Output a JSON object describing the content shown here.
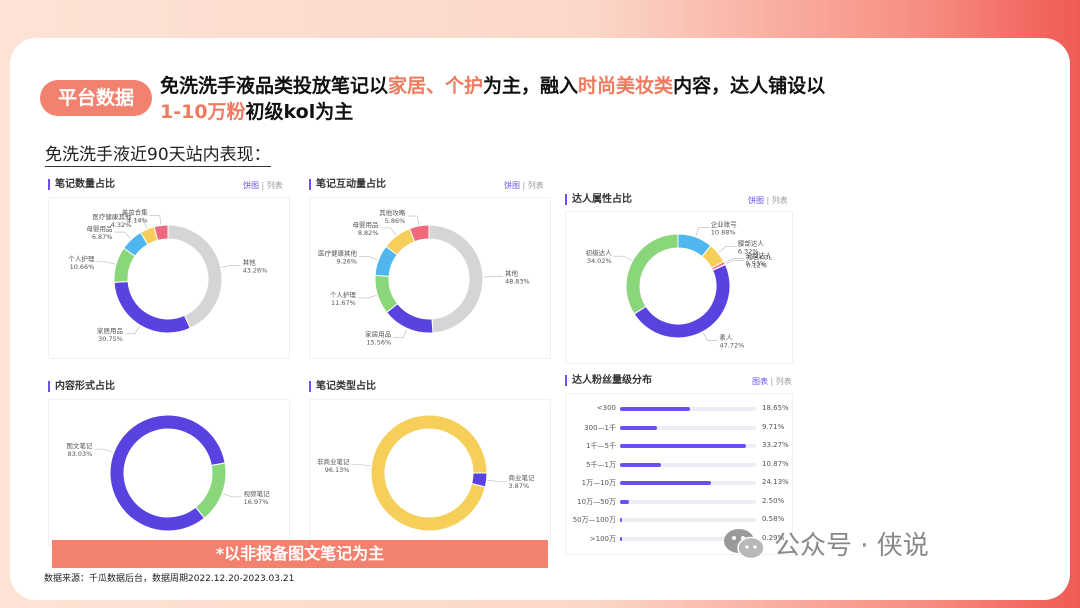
{
  "badge": "平台数据",
  "headline": {
    "p1": "免洗洗手液品类投放笔记以",
    "h1": "家居、个护",
    "p2": "为主，融入",
    "h2": "时尚美妆类",
    "p3": "内容，达人铺设以",
    "h3": "1-10万粉",
    "p4": "初级kol为主"
  },
  "subhead": "免洗洗手液近90天站内表现：",
  "colors": {
    "accent": "#6b4ff2",
    "highlight": "#ef7a5f",
    "badge": "#f2826f"
  },
  "toggles": {
    "pie": "饼图",
    "list": "列表",
    "bar": "图表",
    "sep": "|"
  },
  "chart_data": [
    {
      "id": "note-count",
      "type": "pie",
      "title": "笔记数量占比",
      "slices": [
        {
          "label": "其他",
          "value": 43.26,
          "text": "43.26%",
          "color": "#d5d5d8"
        },
        {
          "label": "家居用品",
          "value": 30.75,
          "text": "30.75%",
          "color": "#5842e0"
        },
        {
          "label": "个人护理",
          "value": 10.66,
          "text": "10.66%",
          "color": "#8ad67a"
        },
        {
          "label": "母婴用品",
          "value": 6.87,
          "text": "6.87%",
          "color": "#4fb6ee"
        },
        {
          "label": "医疗健康其他",
          "value": 4.32,
          "text": "4.32%",
          "color": "#f6cf5a"
        },
        {
          "label": "美妆合集",
          "value": 4.14,
          "text": "4.14%",
          "color": "#ee6a7c"
        }
      ]
    },
    {
      "id": "note-interaction",
      "type": "pie",
      "title": "笔记互动量占比",
      "slices": [
        {
          "label": "其他",
          "value": 48.83,
          "text": "48.83%",
          "color": "#d5d5d8"
        },
        {
          "label": "家居用品",
          "value": 15.56,
          "text": "15.56%",
          "color": "#5842e0"
        },
        {
          "label": "个人护理",
          "value": 11.67,
          "text": "11.67%",
          "color": "#8ad67a"
        },
        {
          "label": "医疗健康其他",
          "value": 9.26,
          "text": "9.26%",
          "color": "#4fb6ee"
        },
        {
          "label": "母婴用品",
          "value": 8.82,
          "text": "8.82%",
          "color": "#f6cf5a"
        },
        {
          "label": "其他攻略",
          "value": 5.86,
          "text": "5.86%",
          "color": "#ee6a7c"
        }
      ]
    },
    {
      "id": "kol-attribute",
      "type": "pie",
      "title": "达人属性占比",
      "slices": [
        {
          "label": "企业账号",
          "value": 10.88,
          "text": "10.88%",
          "color": "#4fb6ee"
        },
        {
          "label": "腰部达人",
          "value": 6.32,
          "text": "6.32%",
          "color": "#f6cf5a"
        },
        {
          "label": "头部达人",
          "value": 0.93,
          "text": "0.93%",
          "color": "#ee6a7c"
        },
        {
          "label": "知名KOL",
          "value": 0.12,
          "text": "0.12%",
          "color": "#c86adf"
        },
        {
          "label": "素人",
          "value": 47.72,
          "text": "47.72%",
          "color": "#5842e0"
        },
        {
          "label": "初级达人",
          "value": 34.02,
          "text": "34.02%",
          "color": "#8ad67a"
        }
      ]
    },
    {
      "id": "content-format",
      "type": "pie",
      "title": "内容形式占比",
      "slices": [
        {
          "label": "视频笔记",
          "value": 16.97,
          "text": "16.97%",
          "color": "#8ad67a"
        },
        {
          "label": "图文笔记",
          "value": 83.03,
          "text": "83.03%",
          "color": "#5842e0"
        }
      ]
    },
    {
      "id": "note-type",
      "type": "pie",
      "title": "笔记类型占比",
      "slices": [
        {
          "label": "商业笔记",
          "value": 3.87,
          "text": "3.87%",
          "color": "#5842e0"
        },
        {
          "label": "非商业笔记",
          "value": 96.13,
          "text": "96.13%",
          "color": "#f6cf5a"
        }
      ]
    },
    {
      "id": "fan-distribution",
      "type": "bar",
      "title": "达人粉丝量级分布",
      "categories": [
        "<300",
        "300—1千",
        "1千—5千",
        "5千—1万",
        "1万—10万",
        "10万—50万",
        "50万—100万",
        ">100万"
      ],
      "values": [
        18.65,
        9.71,
        33.27,
        10.87,
        24.13,
        2.5,
        0.58,
        0.29
      ],
      "value_labels": [
        "18.65%",
        "9.71%",
        "33.27%",
        "10.87%",
        "24.13%",
        "2.50%",
        "0.58%",
        "0.29%"
      ],
      "xlim": [
        0,
        36
      ]
    }
  ],
  "banner": "*以非报备图文笔记为主",
  "source": "数据来源：千瓜数据后台，数据周期2022.12.20-2023.03.21",
  "watermark": "公众号 · 侠说"
}
